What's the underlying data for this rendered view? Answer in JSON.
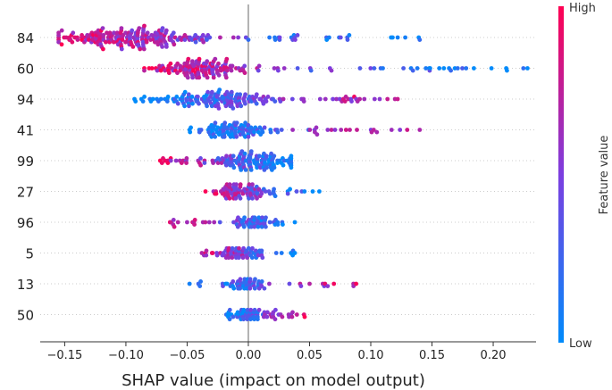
{
  "chart_data": {
    "type": "scatter",
    "subtype": "shap-beeswarm",
    "xlabel": "SHAP value (impact on model output)",
    "ylabel": "",
    "xlim": [
      -0.17,
      0.235
    ],
    "xticks": [
      -0.15,
      -0.1,
      -0.05,
      0.0,
      0.05,
      0.1,
      0.15,
      0.2
    ],
    "xtick_labels": [
      "−0.15",
      "−0.10",
      "−0.05",
      "0.00",
      "0.05",
      "0.10",
      "0.15",
      "0.20"
    ],
    "features": [
      {
        "name": "84",
        "min": -0.155,
        "max": 0.14,
        "high_side": "negative",
        "mode": -0.1,
        "spread": 0.045,
        "count": 230,
        "height": 1.0
      },
      {
        "name": "60",
        "min": -0.085,
        "max": 0.228,
        "high_side": "negative",
        "mode": -0.038,
        "spread": 0.03,
        "count": 170,
        "height": 0.9
      },
      {
        "name": "94",
        "min": -0.093,
        "max": 0.122,
        "high_side": "positive",
        "mode": -0.025,
        "spread": 0.035,
        "count": 170,
        "height": 0.9
      },
      {
        "name": "41",
        "min": -0.048,
        "max": 0.14,
        "high_side": "positive",
        "mode": -0.012,
        "spread": 0.02,
        "count": 130,
        "height": 0.75
      },
      {
        "name": "99",
        "min": -0.072,
        "max": 0.035,
        "high_side": "negative",
        "mode": 0.005,
        "spread": 0.025,
        "count": 140,
        "height": 0.85
      },
      {
        "name": "27",
        "min": -0.035,
        "max": 0.058,
        "high_side": "negative",
        "mode": -0.005,
        "spread": 0.018,
        "count": 100,
        "height": 0.65
      },
      {
        "name": "96",
        "min": -0.064,
        "max": 0.038,
        "high_side": "negative",
        "mode": 0.005,
        "spread": 0.015,
        "count": 100,
        "height": 0.6
      },
      {
        "name": "5",
        "min": -0.038,
        "max": 0.038,
        "high_side": "negative",
        "mode": -0.005,
        "spread": 0.014,
        "count": 90,
        "height": 0.6
      },
      {
        "name": "13",
        "min": -0.048,
        "max": 0.088,
        "high_side": "positive",
        "mode": -0.002,
        "spread": 0.012,
        "count": 80,
        "height": 0.55
      },
      {
        "name": "50",
        "min": -0.018,
        "max": 0.046,
        "high_side": "positive",
        "mode": 0.002,
        "spread": 0.012,
        "count": 100,
        "height": 0.6
      }
    ],
    "colorbar": {
      "label": "Feature value",
      "high_label": "High",
      "low_label": "Low",
      "high_color": "#ff0052",
      "low_color": "#008bfb",
      "mid_color": "#7c3ee0"
    }
  }
}
